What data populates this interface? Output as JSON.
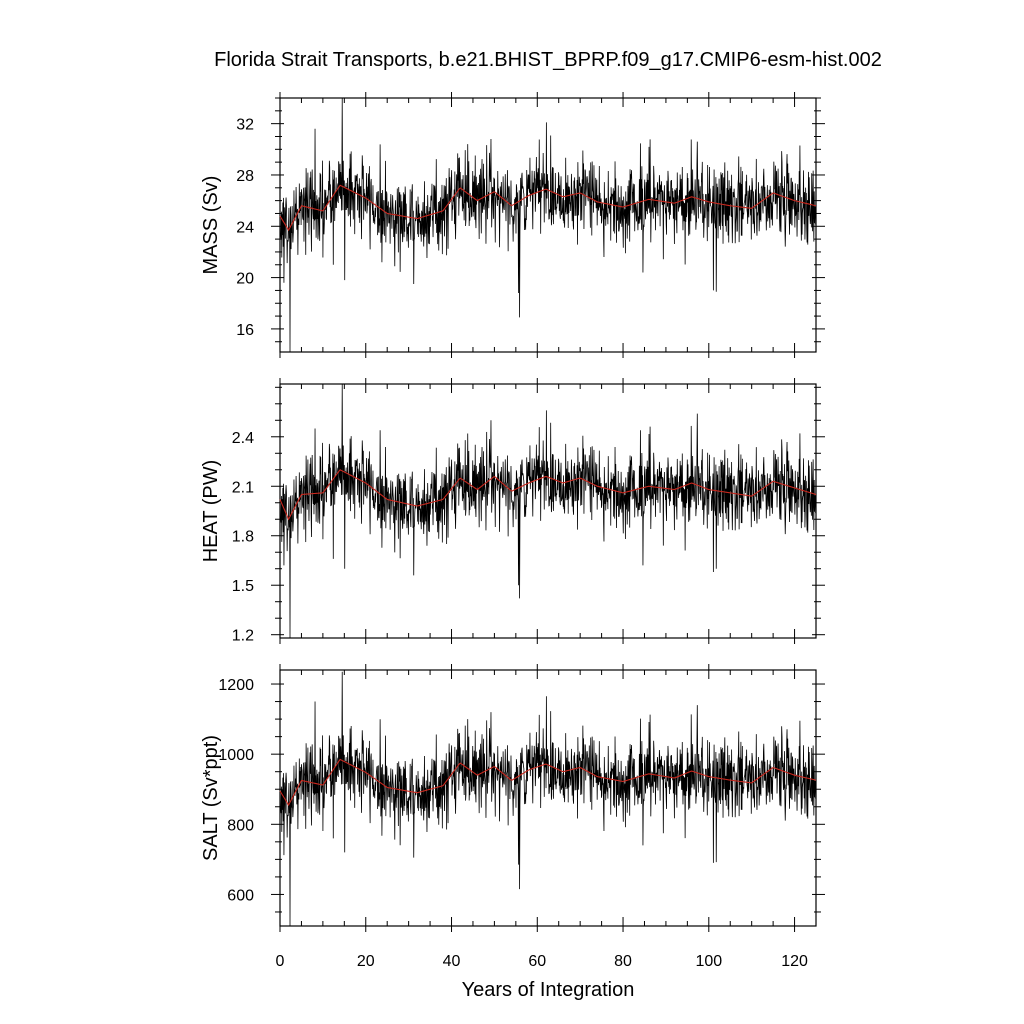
{
  "chart_data": {
    "type": "line",
    "title": "Florida Strait Transports, b.e21.BHIST_BPRP.f09_g17.CMIP6-esm-hist.002",
    "xlabel": "Years of Integration",
    "xlim": [
      0,
      125
    ],
    "x_ticks": [
      0,
      20,
      40,
      60,
      80,
      100,
      120
    ],
    "x_minor_step": 5,
    "grid": false,
    "legend": "none",
    "colors": {
      "raw": "#000000",
      "smoothed": "#c8281e"
    },
    "panels": [
      {
        "name": "mass",
        "ylabel": "MASS (Sv)",
        "ylim": [
          14.2,
          34.0
        ],
        "y_ticks": [
          16,
          20,
          24,
          28,
          32
        ],
        "y_minor_step": 1,
        "mean": 25.8,
        "noise": 1.55,
        "lowfreq": [
          [
            0,
            24.8
          ],
          [
            2,
            23.7
          ],
          [
            5,
            25.6
          ],
          [
            10,
            25.2
          ],
          [
            14,
            27.2
          ],
          [
            20,
            26.2
          ],
          [
            25,
            25.0
          ],
          [
            32,
            24.6
          ],
          [
            38,
            25.2
          ],
          [
            42,
            27.0
          ],
          [
            46,
            26.0
          ],
          [
            50,
            26.7
          ],
          [
            54,
            25.6
          ],
          [
            58,
            26.4
          ],
          [
            62,
            26.9
          ],
          [
            66,
            26.3
          ],
          [
            70,
            26.6
          ],
          [
            74,
            25.9
          ],
          [
            80,
            25.5
          ],
          [
            86,
            26.1
          ],
          [
            92,
            25.8
          ],
          [
            96,
            26.3
          ],
          [
            100,
            25.9
          ],
          [
            105,
            25.6
          ],
          [
            110,
            25.4
          ],
          [
            115,
            26.6
          ],
          [
            120,
            26.0
          ],
          [
            125,
            25.6
          ]
        ],
        "spikes": [
          [
            2.3,
            14.2
          ],
          [
            0.9,
            19.6
          ],
          [
            8.2,
            31.6
          ],
          [
            14.5,
            34.0
          ],
          [
            15.1,
            19.8
          ],
          [
            55.6,
            18.8
          ],
          [
            55.9,
            16.9
          ],
          [
            62.1,
            32.1
          ],
          [
            84.6,
            20.4
          ],
          [
            101.1,
            19.0
          ],
          [
            101.7,
            18.9
          ],
          [
            12.4,
            21.0
          ],
          [
            31.2,
            19.5
          ],
          [
            43.8,
            30.4
          ],
          [
            49.2,
            30.8
          ],
          [
            97.3,
            30.6
          ]
        ]
      },
      {
        "name": "heat",
        "ylabel": "HEAT (PW)",
        "ylim": [
          1.18,
          2.72
        ],
        "y_ticks": [
          1.2,
          1.5,
          1.8,
          2.1,
          2.4
        ],
        "y_tick_labels": [
          "1.2",
          "1.5",
          "1.8",
          "2.1",
          "2.4"
        ],
        "y_minor_step": 0.1,
        "mean": 2.08,
        "noise": 0.12,
        "lowfreq": [
          [
            0,
            2.02
          ],
          [
            2,
            1.9
          ],
          [
            5,
            2.05
          ],
          [
            10,
            2.06
          ],
          [
            14,
            2.2
          ],
          [
            20,
            2.12
          ],
          [
            25,
            2.02
          ],
          [
            32,
            1.98
          ],
          [
            38,
            2.02
          ],
          [
            42,
            2.15
          ],
          [
            46,
            2.08
          ],
          [
            50,
            2.16
          ],
          [
            54,
            2.07
          ],
          [
            58,
            2.12
          ],
          [
            62,
            2.16
          ],
          [
            66,
            2.12
          ],
          [
            70,
            2.15
          ],
          [
            74,
            2.1
          ],
          [
            80,
            2.06
          ],
          [
            86,
            2.1
          ],
          [
            92,
            2.08
          ],
          [
            96,
            2.12
          ],
          [
            100,
            2.08
          ],
          [
            105,
            2.06
          ],
          [
            110,
            2.04
          ],
          [
            115,
            2.13
          ],
          [
            120,
            2.09
          ],
          [
            125,
            2.05
          ]
        ],
        "spikes": [
          [
            2.3,
            1.18
          ],
          [
            0.9,
            1.62
          ],
          [
            8.2,
            2.45
          ],
          [
            14.5,
            2.72
          ],
          [
            15.1,
            1.6
          ],
          [
            55.6,
            1.5
          ],
          [
            55.9,
            1.42
          ],
          [
            62.1,
            2.56
          ],
          [
            84.6,
            1.62
          ],
          [
            101.1,
            1.58
          ],
          [
            101.7,
            1.6
          ],
          [
            12.4,
            1.66
          ],
          [
            31.2,
            1.56
          ],
          [
            43.8,
            2.42
          ],
          [
            49.2,
            2.5
          ],
          [
            97.3,
            2.54
          ]
        ]
      },
      {
        "name": "salt",
        "ylabel": "SALT (Sv*ppt)",
        "ylim": [
          510,
          1240
        ],
        "y_ticks": [
          600,
          800,
          1000,
          1200
        ],
        "y_minor_step": 50,
        "mean": 930,
        "noise": 56,
        "lowfreq": [
          [
            0,
            895
          ],
          [
            2,
            855
          ],
          [
            5,
            925
          ],
          [
            10,
            912
          ],
          [
            14,
            985
          ],
          [
            20,
            948
          ],
          [
            25,
            905
          ],
          [
            32,
            890
          ],
          [
            38,
            910
          ],
          [
            42,
            975
          ],
          [
            46,
            940
          ],
          [
            50,
            965
          ],
          [
            54,
            925
          ],
          [
            58,
            955
          ],
          [
            62,
            972
          ],
          [
            66,
            950
          ],
          [
            70,
            962
          ],
          [
            74,
            936
          ],
          [
            80,
            922
          ],
          [
            86,
            944
          ],
          [
            92,
            932
          ],
          [
            96,
            952
          ],
          [
            100,
            936
          ],
          [
            105,
            926
          ],
          [
            110,
            918
          ],
          [
            115,
            962
          ],
          [
            120,
            940
          ],
          [
            125,
            926
          ]
        ],
        "spikes": [
          [
            2.3,
            510
          ],
          [
            0.9,
            712
          ],
          [
            8.2,
            1150
          ],
          [
            14.5,
            1235
          ],
          [
            15.1,
            720
          ],
          [
            55.6,
            685
          ],
          [
            55.9,
            615
          ],
          [
            62.1,
            1165
          ],
          [
            84.6,
            740
          ],
          [
            101.1,
            690
          ],
          [
            101.7,
            692
          ],
          [
            12.4,
            760
          ],
          [
            31.2,
            705
          ],
          [
            43.8,
            1100
          ],
          [
            49.2,
            1120
          ],
          [
            97.3,
            1140
          ]
        ]
      }
    ]
  }
}
